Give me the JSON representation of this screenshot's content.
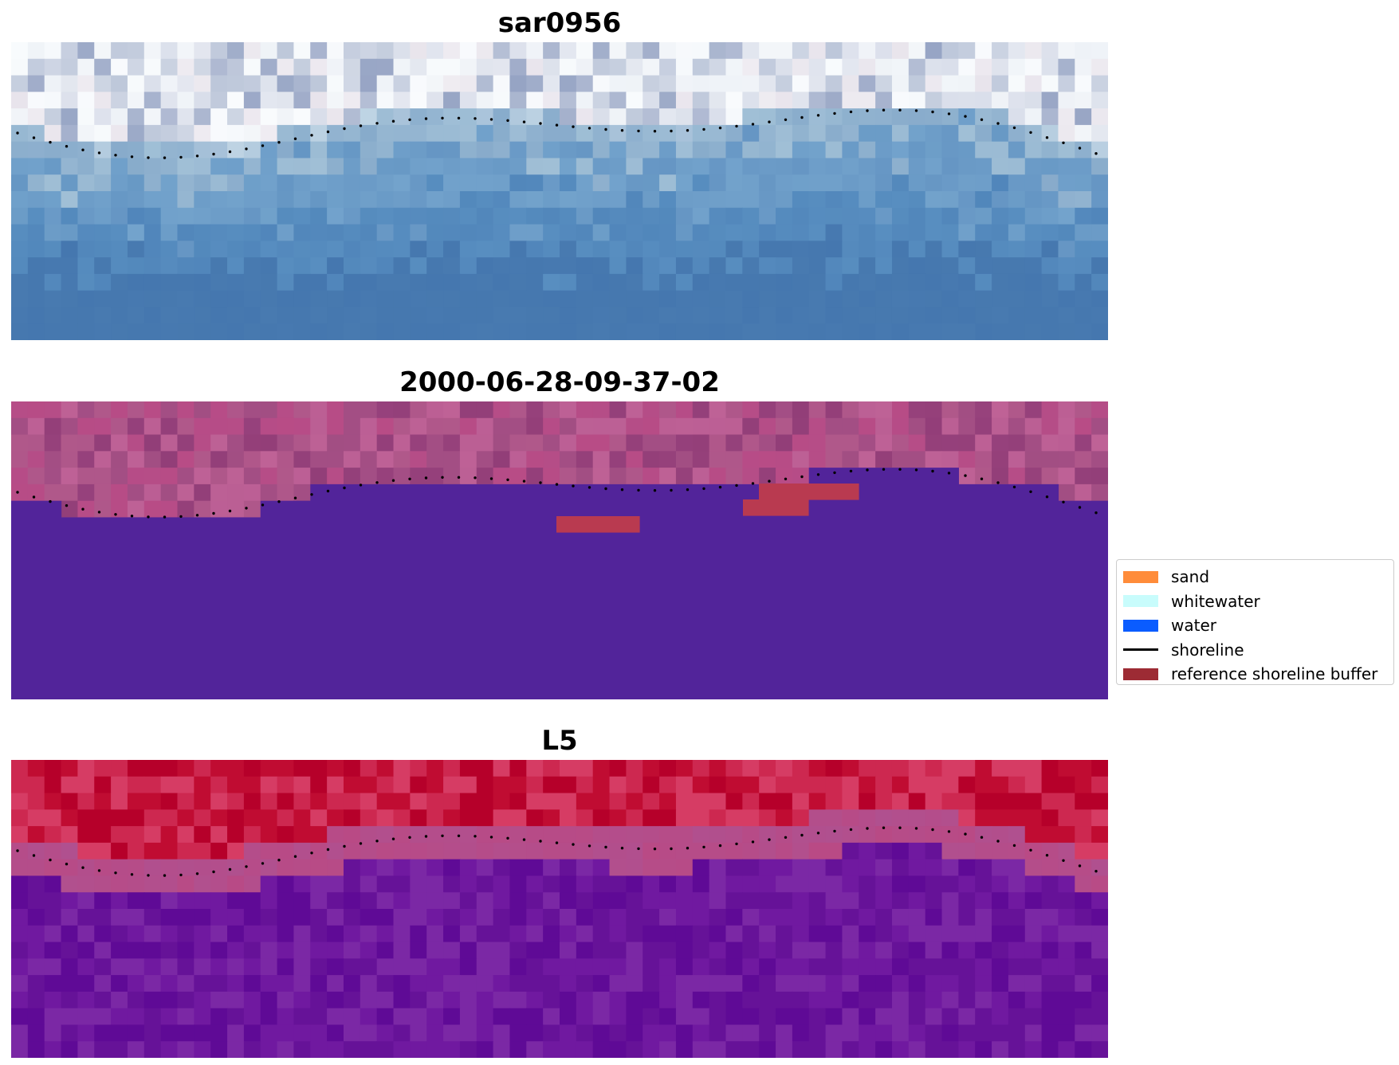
{
  "panels": [
    {
      "title": "sar0956",
      "palette": [
        [
          227,
          236,
          243
        ],
        [
          196,
          216,
          230
        ],
        [
          160,
          191,
          214
        ],
        [
          115,
          163,
          204
        ],
        [
          88,
          142,
          192
        ],
        [
          72,
          122,
          176
        ]
      ],
      "upper_palette": [
        [
          238,
          242,
          247
        ],
        [
          217,
          222,
          234
        ],
        [
          189,
          199,
          218
        ],
        [
          150,
          164,
          196
        ],
        [
          232,
          228,
          236
        ],
        [
          246,
          249,
          252
        ]
      ]
    },
    {
      "title": "2000-06-28-09-37-02",
      "palette": [
        [
          162,
          78,
          131
        ],
        [
          176,
          88,
          138
        ],
        [
          191,
          98,
          150
        ],
        [
          146,
          62,
          120
        ],
        [
          184,
          76,
          134
        ]
      ],
      "water_color": "#52249a",
      "buffer_color": "#b93a50"
    },
    {
      "title": "L5",
      "palette": [
        [
          192,
          12,
          50
        ],
        [
          205,
          40,
          80
        ],
        [
          182,
          0,
          42
        ],
        [
          214,
          60,
          100
        ]
      ],
      "lower_palette": [
        [
          95,
          10,
          150
        ],
        [
          112,
          25,
          160
        ],
        [
          123,
          40,
          165
        ],
        [
          102,
          18,
          152
        ]
      ],
      "band_color": "#b0508f"
    }
  ],
  "legend": {
    "items": [
      {
        "label": "sand",
        "kind": "patch",
        "color": "#ff8c3a"
      },
      {
        "label": "whitewater",
        "kind": "patch",
        "color": "#c8fcfc"
      },
      {
        "label": "water",
        "kind": "patch",
        "color": "#0a5cff"
      },
      {
        "label": "shoreline",
        "kind": "line",
        "color": "#000000"
      },
      {
        "label": "reference shoreline buffer",
        "kind": "patch",
        "color": "#9d2b34"
      }
    ]
  }
}
